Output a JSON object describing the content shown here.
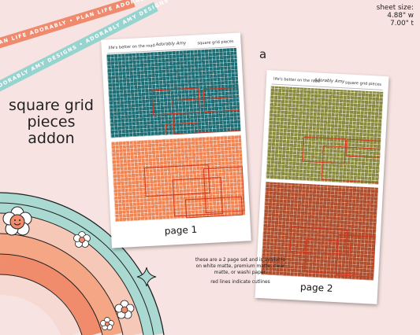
{
  "ribbons": {
    "orange_text": "PLAN LIFE ADORABLY • PLAN LIFE ADORABLY",
    "teal_text": "ADORABLY AMY DESIGNS • ADORABLY AMY DESIGNS •"
  },
  "title": {
    "line1": "square grid",
    "line2": "pieces",
    "line3": "addon"
  },
  "sheet_size": {
    "label": "sheet size:",
    "width": "4.88\" w",
    "height": "7.00\" t"
  },
  "variant_letter": "a",
  "sheet_header": {
    "left": "life's better on the road",
    "brand": "Adorably Amy",
    "right": "square grid pieces"
  },
  "pages": [
    {
      "label": "page 1",
      "top_color": "#1d6e74",
      "bottom_color": "#ef8552"
    },
    {
      "label": "page 2",
      "top_color": "#8a8a3e",
      "bottom_color": "#b04d2b"
    }
  ],
  "info": {
    "line1": "these are a 2 page set and is available on white matte, premium matte, clear matte, or washi paper.",
    "line2": "red lines indicate cutlines"
  },
  "colors": {
    "background": "#f7e4e2",
    "cutline": "#d0351e",
    "ribbon_orange": "#ef8a6e",
    "ribbon_teal": "#98d4cf"
  },
  "decorations": {
    "rainbow_icon": "rainbow-icon",
    "smiley_flower_icon": "smiley-flower-icon",
    "flower_icon": "flower-icon",
    "sparkle_icon": "sparkle-icon"
  }
}
